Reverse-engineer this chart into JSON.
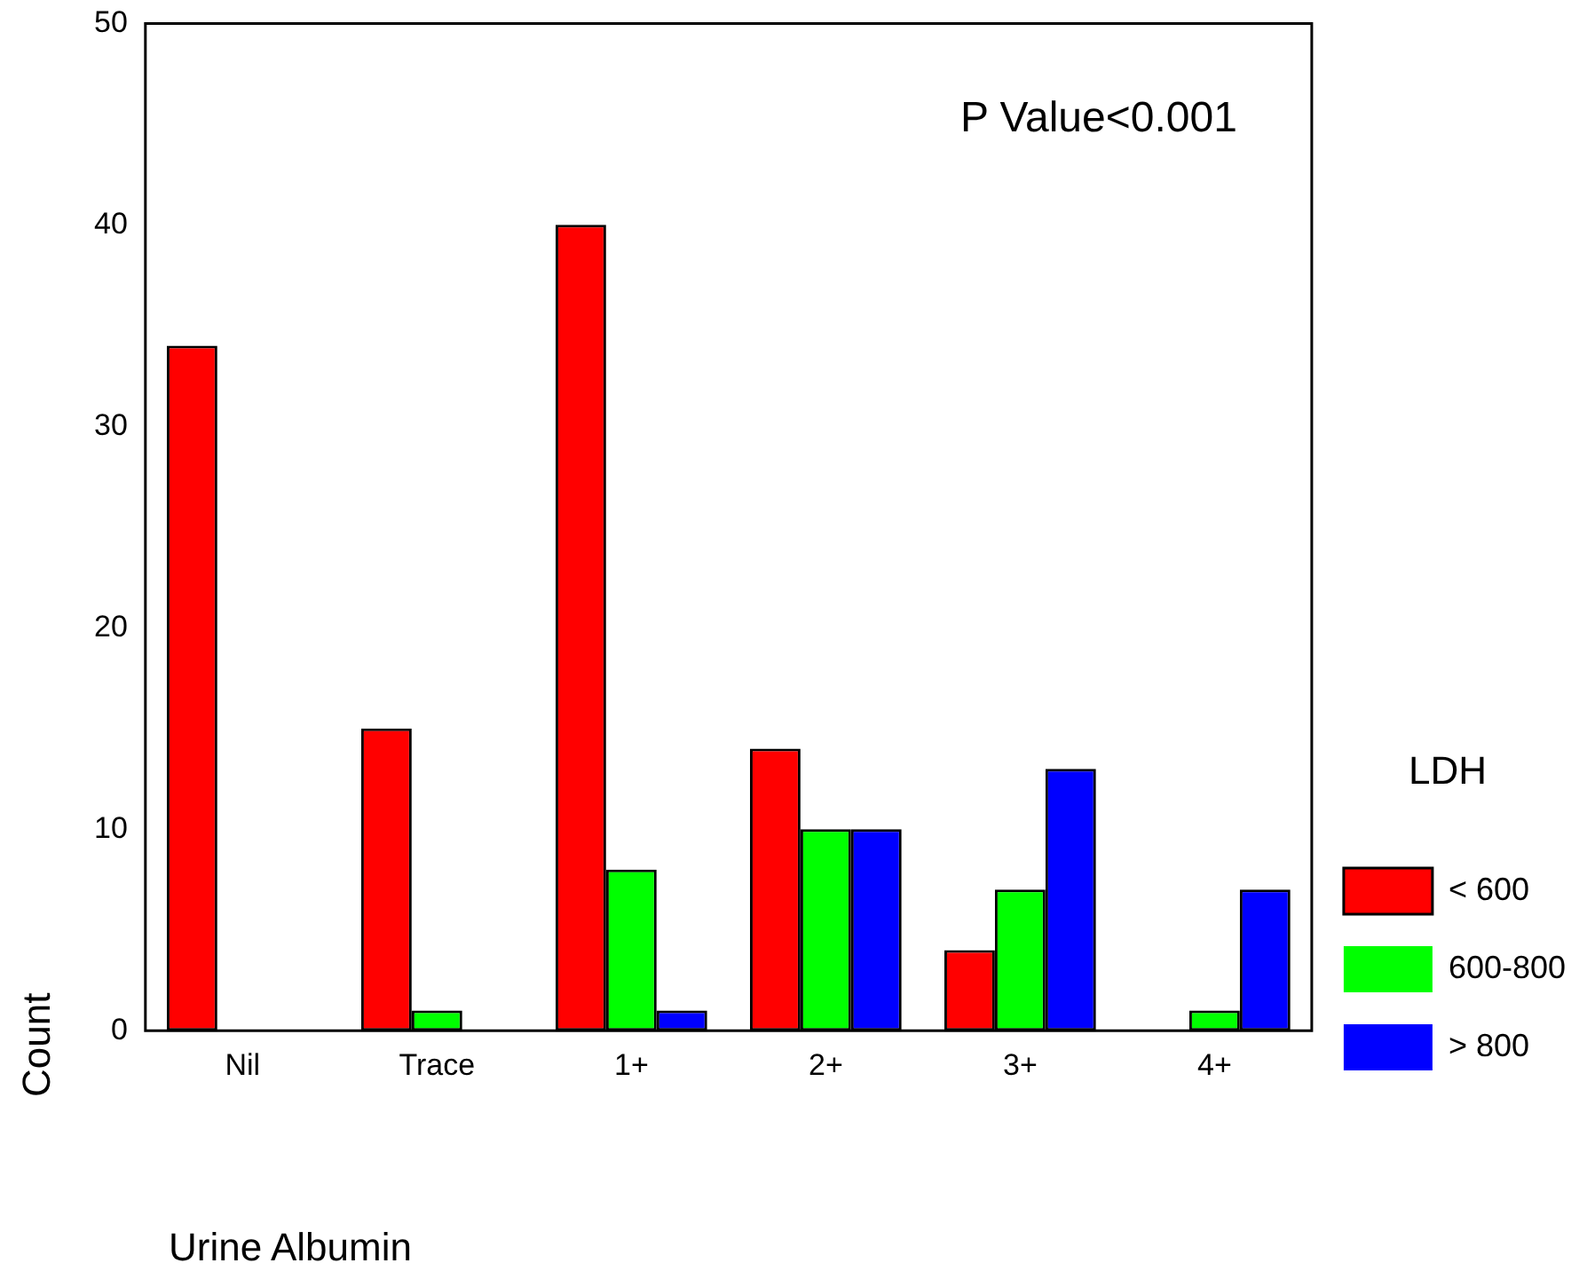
{
  "chart_data": {
    "type": "bar",
    "xlabel": "Urine Albumin",
    "ylabel": "Count",
    "legend_title": "LDH",
    "legend": "right",
    "categories": [
      "Nil",
      "Trace",
      "1+",
      "2+",
      "3+",
      "4+"
    ],
    "series": [
      {
        "name": "< 600",
        "color": "#ff0000",
        "values": [
          34,
          15,
          40,
          14,
          4,
          0
        ]
      },
      {
        "name": "600-800",
        "color": "#00ff00",
        "values": [
          0,
          1,
          8,
          10,
          7,
          1
        ]
      },
      {
        "name": "> 800",
        "color": "#0000ff",
        "values": [
          0,
          0,
          1,
          10,
          13,
          7
        ]
      }
    ],
    "ylim": [
      0,
      50
    ],
    "yticks": [
      0,
      10,
      20,
      30,
      40,
      50
    ],
    "grid": false,
    "annotations": [
      "P Value<0.001"
    ]
  }
}
